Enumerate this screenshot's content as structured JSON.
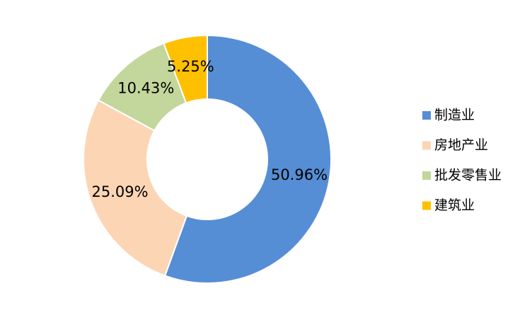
{
  "chart_data": {
    "type": "pie",
    "categories": [
      "制造业",
      "房地产业",
      "批发零售业",
      "建筑业"
    ],
    "values": [
      50.96,
      25.09,
      10.43,
      5.25
    ],
    "value_labels": [
      "50.96%",
      "25.09%",
      "10.43%",
      "5.25%"
    ],
    "colors": [
      "#558ed5",
      "#fcd5b5",
      "#c3d69b",
      "#ffc000"
    ],
    "legend": "right"
  }
}
